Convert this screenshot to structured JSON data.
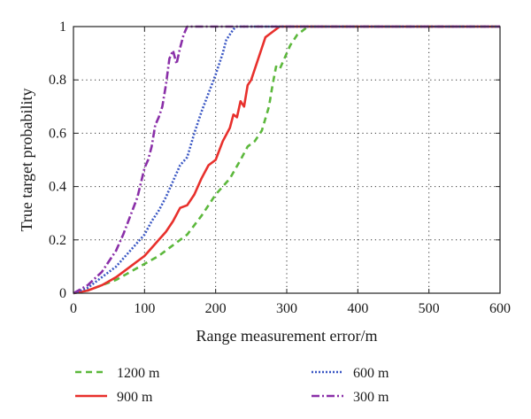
{
  "chart_data": {
    "type": "line",
    "title": "",
    "xlabel": "Range measurement error/m",
    "ylabel": "True target probability",
    "xlim": [
      0,
      600
    ],
    "ylim": [
      0,
      1
    ],
    "xticks": [
      0,
      100,
      200,
      300,
      400,
      500,
      600
    ],
    "yticks": [
      0,
      0.2,
      0.4,
      0.6,
      0.8,
      1
    ],
    "xtick_labels": [
      "0",
      "100",
      "200",
      "300",
      "400",
      "500",
      "600"
    ],
    "ytick_labels": [
      "0",
      "0.2",
      "0.4",
      "0.6",
      "0.8",
      "1"
    ],
    "grid": true,
    "grid_style": "dotted",
    "legend_position": "below",
    "series": [
      {
        "name": "1200 m",
        "color": "#5cb83c",
        "dash": "7,5",
        "x": [
          0,
          20,
          40,
          60,
          80,
          100,
          120,
          140,
          160,
          180,
          200,
          220,
          235,
          245,
          255,
          265,
          275,
          280,
          285,
          290,
          295,
          300,
          305,
          310,
          315,
          320,
          325,
          330,
          600
        ],
        "y": [
          0,
          0.01,
          0.03,
          0.05,
          0.08,
          0.11,
          0.14,
          0.18,
          0.22,
          0.29,
          0.37,
          0.43,
          0.5,
          0.55,
          0.57,
          0.61,
          0.7,
          0.78,
          0.85,
          0.84,
          0.87,
          0.9,
          0.93,
          0.95,
          0.97,
          0.98,
          0.99,
          1,
          1
        ]
      },
      {
        "name": "900 m",
        "color": "#e8302c",
        "dash": "",
        "x": [
          0,
          20,
          40,
          60,
          80,
          100,
          110,
          120,
          130,
          140,
          150,
          160,
          170,
          180,
          190,
          200,
          210,
          220,
          225,
          230,
          235,
          240,
          245,
          250,
          260,
          270,
          280,
          290,
          300,
          600
        ],
        "y": [
          0,
          0.01,
          0.03,
          0.06,
          0.1,
          0.14,
          0.17,
          0.2,
          0.23,
          0.27,
          0.32,
          0.33,
          0.37,
          0.43,
          0.48,
          0.5,
          0.57,
          0.62,
          0.67,
          0.66,
          0.72,
          0.7,
          0.78,
          0.8,
          0.88,
          0.96,
          0.98,
          1,
          1,
          1
        ]
      },
      {
        "name": "600 m",
        "color": "#3a57c4",
        "dash": "2,2",
        "x": [
          0,
          20,
          40,
          60,
          80,
          100,
          110,
          120,
          130,
          140,
          150,
          160,
          170,
          180,
          190,
          200,
          210,
          215,
          220,
          225,
          230,
          600
        ],
        "y": [
          0,
          0.02,
          0.06,
          0.1,
          0.16,
          0.22,
          0.27,
          0.31,
          0.36,
          0.42,
          0.48,
          0.51,
          0.6,
          0.68,
          0.75,
          0.82,
          0.9,
          0.95,
          0.97,
          0.99,
          1,
          1
        ]
      },
      {
        "name": "300 m",
        "color": "#8a2fa8",
        "dash": "9,3,2,3",
        "x": [
          0,
          20,
          40,
          60,
          70,
          80,
          90,
          100,
          105,
          110,
          115,
          120,
          125,
          130,
          135,
          140,
          145,
          150,
          155,
          160,
          600
        ],
        "y": [
          0,
          0.03,
          0.08,
          0.16,
          0.22,
          0.29,
          0.36,
          0.47,
          0.5,
          0.55,
          0.63,
          0.66,
          0.7,
          0.78,
          0.88,
          0.91,
          0.86,
          0.92,
          0.97,
          1,
          1
        ]
      }
    ]
  }
}
